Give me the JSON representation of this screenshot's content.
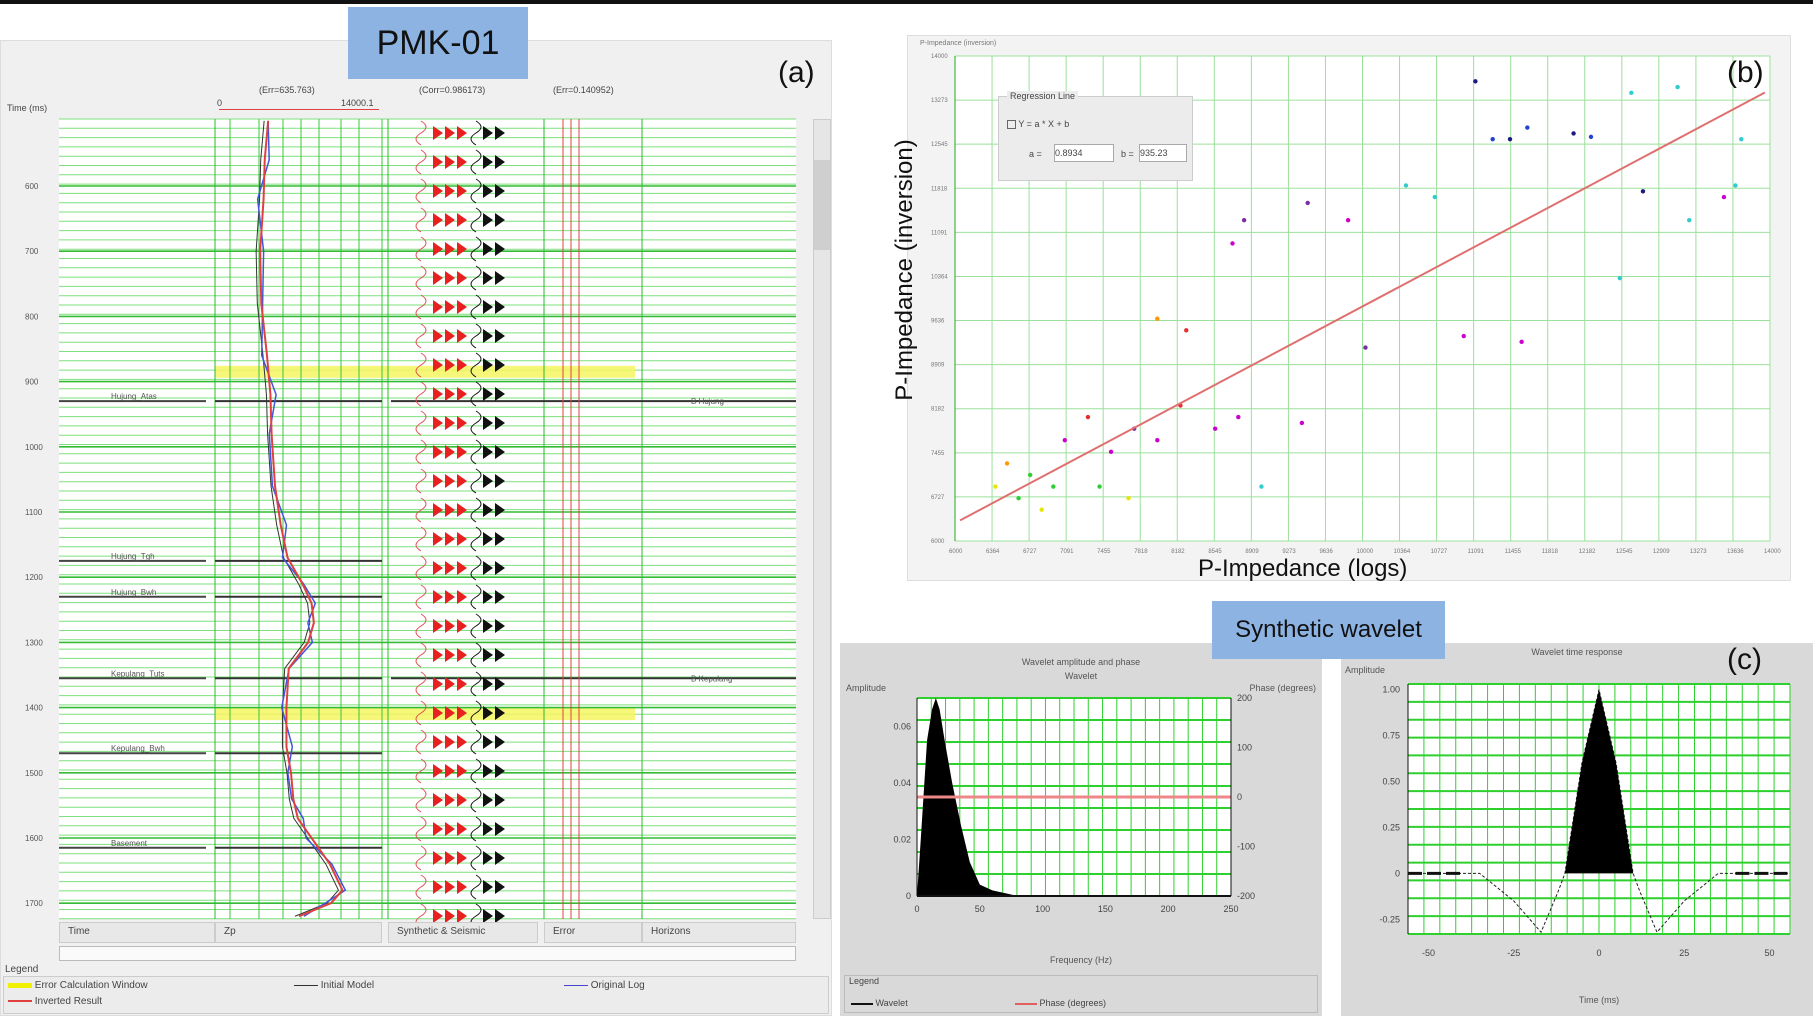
{
  "labels": {
    "well": "PMK-01",
    "synthetic": "Synthetic wavelet",
    "a": "(a)",
    "b": "(b)",
    "c": "(c)"
  },
  "panel_a": {
    "time_label": "Time (ms)",
    "zp_err": "(Err=635.763)",
    "zp_scale_min": "0",
    "zp_scale_max": "14000.1",
    "corr": "(Corr=0.986173)",
    "err": "(Err=0.140952)",
    "time_ticks": [
      600,
      700,
      800,
      900,
      1000,
      1100,
      1200,
      1300,
      1400,
      1500,
      1600,
      1700
    ],
    "tracks": [
      "Time",
      "Zp",
      "Synthetic & Seismic",
      "Error",
      "Horizons"
    ],
    "horizons": [
      {
        "name": "Hujung_Atas",
        "t": 930,
        "right": "B Hujung"
      },
      {
        "name": "Hujung_Tgh",
        "t": 1175,
        "right": ""
      },
      {
        "name": "Hujung_Bwh",
        "t": 1230,
        "right": ""
      },
      {
        "name": "Kepulang_Tuts",
        "t": 1355,
        "right": "B Kepulang"
      },
      {
        "name": "Kepulang_Bwh",
        "t": 1470,
        "right": ""
      },
      {
        "name": "Basement",
        "t": 1615,
        "right": ""
      }
    ],
    "error_windows": [
      {
        "t": 885
      },
      {
        "t": 1410
      }
    ],
    "zp_log": [
      [
        500,
        4300
      ],
      [
        560,
        4000
      ],
      [
        620,
        3900
      ],
      [
        700,
        3600
      ],
      [
        780,
        3700
      ],
      [
        860,
        4200
      ],
      [
        920,
        4500
      ],
      [
        980,
        4600
      ],
      [
        1060,
        4900
      ],
      [
        1120,
        5400
      ],
      [
        1170,
        6000
      ],
      [
        1210,
        7300
      ],
      [
        1240,
        8100
      ],
      [
        1270,
        8300
      ],
      [
        1300,
        7800
      ],
      [
        1340,
        6100
      ],
      [
        1400,
        5900
      ],
      [
        1460,
        5900
      ],
      [
        1500,
        6300
      ],
      [
        1540,
        6500
      ],
      [
        1570,
        6900
      ],
      [
        1600,
        8100
      ],
      [
        1640,
        9700
      ],
      [
        1680,
        10800
      ],
      [
        1700,
        9800
      ],
      [
        1720,
        7000
      ]
    ],
    "legend": {
      "title": "Legend",
      "items": [
        "Error Calculation Window",
        "Inverted Result",
        "Initial Model",
        "Original Log"
      ]
    }
  },
  "panel_b": {
    "title": "P-Impedance (inversion)",
    "ylabel": "P-Impedance (inversion)",
    "xlabel": "P-Impedance (logs)",
    "box": {
      "title": "Regression Line",
      "eq": "Y = a * X + b",
      "a_label": "a =",
      "a": "0.8934",
      "b_label": "b =",
      "b": "935.23"
    },
    "chart_data": {
      "type": "scatter",
      "xlim": [
        6000,
        14000
      ],
      "ylim": [
        6000,
        14000
      ],
      "regression": {
        "a": 0.8934,
        "b": 935
      },
      "points": [
        [
          6397,
          6898,
          "#e6e600"
        ],
        [
          6624,
          6707,
          "#33cc33"
        ],
        [
          6738,
          7089,
          "#33cc33"
        ],
        [
          6851,
          6516,
          "#e6e600"
        ],
        [
          6511,
          7280,
          "#ff9900"
        ],
        [
          7078,
          7662,
          "#cc00cc"
        ],
        [
          7305,
          8044,
          "#e62e2e"
        ],
        [
          7532,
          7471,
          "#cc00cc"
        ],
        [
          7759,
          7853,
          "#7a2ea0"
        ],
        [
          7986,
          7662,
          "#cc00cc"
        ],
        [
          8213,
          8235,
          "#e62e2e"
        ],
        [
          8554,
          7853,
          "#cc00cc"
        ],
        [
          8781,
          8044,
          "#cc00cc"
        ],
        [
          9405,
          7948,
          "#cc00cc"
        ],
        [
          6965,
          6898,
          "#33cc33"
        ],
        [
          7419,
          6898,
          "#33cc33"
        ],
        [
          7703,
          6707,
          "#e6e600"
        ],
        [
          7986,
          9667,
          "#ff9900"
        ],
        [
          8270,
          9476,
          "#e62e2e"
        ],
        [
          8724,
          10909,
          "#cc00cc"
        ],
        [
          8838,
          11291,
          "#7a2ea0"
        ],
        [
          9859,
          11291,
          "#cc00cc"
        ],
        [
          10029,
          9190,
          "#7a2ea0"
        ],
        [
          10427,
          11864,
          "#33cccc"
        ],
        [
          10710,
          11673,
          "#33cccc"
        ],
        [
          10994,
          9381,
          "#cc00cc"
        ],
        [
          11108,
          13583,
          "#1a1a80"
        ],
        [
          11278,
          12628,
          "#2244cc"
        ],
        [
          11448,
          12628,
          "#1a1a80"
        ],
        [
          11618,
          12819,
          "#2244cc"
        ],
        [
          11562,
          9285,
          "#cc00cc"
        ],
        [
          12072,
          12723,
          "#1a1a80"
        ],
        [
          12243,
          12666,
          "#2244cc"
        ],
        [
          12526,
          10336,
          "#33cccc"
        ],
        [
          12639,
          13392,
          "#33cccc"
        ],
        [
          13093,
          13487,
          "#33cccc"
        ],
        [
          13207,
          11291,
          "#33cccc"
        ],
        [
          13548,
          11673,
          "#cc00cc"
        ],
        [
          13661,
          11864,
          "#33cccc"
        ],
        [
          13718,
          12628,
          "#33cccc"
        ],
        [
          12753,
          11768,
          "#1a1a80"
        ],
        [
          9008,
          6898,
          "#33cccc"
        ],
        [
          9462,
          11577,
          "#7a2ea0"
        ]
      ]
    }
  },
  "panel_c": {
    "spectrum": {
      "title": "Wavelet amplitude and phase",
      "subtitle": "Wavelet",
      "ylabel": "Amplitude",
      "y2label": "Phase (degrees)",
      "xlabel": "Frequency (Hz)",
      "yticks": [
        "0.06",
        "0.04",
        "0.02",
        "0"
      ],
      "y2ticks": [
        "200",
        "100",
        "0",
        "-100",
        "-200"
      ],
      "xticks": [
        "0",
        "50",
        "100",
        "150",
        "200",
        "250"
      ],
      "legend_title": "Legend",
      "legend": [
        "Wavelet",
        "Phase (degrees)"
      ],
      "chart_data": {
        "type": "area",
        "xlim": [
          0,
          250
        ],
        "ylim": [
          0,
          0.07
        ],
        "freq": [
          0,
          3,
          8,
          12,
          15,
          18,
          22,
          28,
          35,
          42,
          50,
          60,
          70,
          80
        ],
        "amp": [
          0,
          0.02,
          0.055,
          0.066,
          0.07,
          0.066,
          0.055,
          0.04,
          0.025,
          0.012,
          0.004,
          0.002,
          0.001,
          0
        ],
        "phase_deg": 0
      }
    },
    "time": {
      "title": "Wavelet time response",
      "ylabel": "Amplitude",
      "xlabel": "Time (ms)",
      "yticks": [
        "1.00",
        "0.75",
        "0.50",
        "0.25",
        "0",
        "-0.25"
      ],
      "xticks": [
        "-50",
        "-25",
        "0",
        "25",
        "50"
      ],
      "chart_data": {
        "type": "line",
        "xlim": [
          -56,
          56
        ],
        "ylim": [
          -0.33,
          1.03
        ],
        "t": [
          -56,
          -40,
          -35,
          -25,
          -17,
          -12,
          -10,
          -5,
          0,
          5,
          10,
          12,
          17,
          25,
          35,
          40,
          56
        ],
        "amp": [
          0,
          0,
          0,
          -0.15,
          -0.32,
          -0.1,
          0,
          0.6,
          1,
          0.6,
          0,
          -0.1,
          -0.32,
          -0.15,
          0,
          0,
          0
        ]
      }
    }
  }
}
